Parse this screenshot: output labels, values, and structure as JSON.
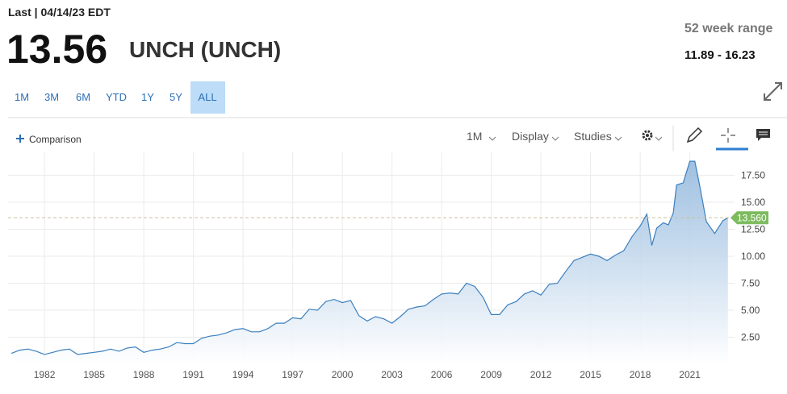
{
  "header": {
    "last_label": "Last | 04/14/23 EDT",
    "price": "13.56",
    "name": "UNCH (UNCH)",
    "range_label": "52 week range",
    "range": "11.89 - 16.23"
  },
  "range_buttons": [
    "1M",
    "3M",
    "6M",
    "YTD",
    "1Y",
    "5Y",
    "ALL"
  ],
  "active_range": 6,
  "toolbar": {
    "comparison": "Comparison",
    "interval": "1M",
    "display": "Display",
    "studies": "Studies"
  },
  "chart_data": {
    "type": "line",
    "color": "#3b7fbf",
    "x": [
      1980,
      1980.5,
      1981,
      1981.5,
      1982,
      1982.5,
      1983,
      1983.5,
      1984,
      1984.5,
      1985,
      1985.5,
      1986,
      1986.5,
      1987,
      1987.5,
      1988,
      1988.5,
      1989,
      1989.5,
      1990,
      1990.5,
      1991,
      1991.5,
      1992,
      1992.5,
      1993,
      1993.5,
      1994,
      1994.5,
      1995,
      1995.5,
      1996,
      1996.5,
      1997,
      1997.5,
      1998,
      1998.5,
      1999,
      1999.5,
      2000,
      2000.5,
      2001,
      2001.5,
      2002,
      2002.5,
      2003,
      2003.5,
      2004,
      2004.5,
      2005,
      2005.5,
      2006,
      2006.5,
      2007,
      2007.5,
      2008,
      2008.5,
      2009,
      2009.5,
      2010,
      2010.5,
      2011,
      2011.5,
      2012,
      2012.5,
      2013,
      2013.5,
      2014,
      2014.5,
      2015,
      2015.5,
      2016,
      2016.5,
      2017,
      2017.5,
      2018,
      2018.4,
      2018.7,
      2019,
      2019.4,
      2019.7,
      2020,
      2020.2,
      2020.6,
      2021,
      2021.3,
      2021.6,
      2022,
      2022.5,
      2023,
      2023.3
    ],
    "values": [
      1.0,
      1.3,
      1.4,
      1.2,
      0.9,
      1.1,
      1.3,
      1.4,
      0.9,
      1.0,
      1.1,
      1.2,
      1.4,
      1.2,
      1.5,
      1.6,
      1.1,
      1.3,
      1.4,
      1.6,
      2.0,
      1.9,
      1.9,
      2.4,
      2.6,
      2.7,
      2.9,
      3.2,
      3.3,
      3.0,
      3.0,
      3.3,
      3.8,
      3.8,
      4.3,
      4.2,
      5.1,
      5.0,
      5.8,
      6.0,
      5.7,
      5.9,
      4.5,
      4.0,
      4.4,
      4.2,
      3.8,
      4.4,
      5.1,
      5.3,
      5.4,
      6.0,
      6.5,
      6.6,
      6.5,
      7.5,
      7.2,
      6.2,
      4.6,
      4.6,
      5.5,
      5.8,
      6.5,
      6.8,
      6.4,
      7.4,
      7.5,
      8.6,
      9.6,
      9.9,
      10.2,
      10.0,
      9.6,
      10.1,
      10.5,
      11.8,
      12.8,
      13.9,
      11.0,
      12.6,
      13.1,
      12.9,
      14.0,
      16.6,
      16.8,
      18.8,
      18.8,
      16.5,
      13.2,
      12.1,
      13.3,
      13.56
    ],
    "xlim": [
      1979.8,
      2023.7
    ],
    "ylim": [
      0,
      19.7
    ],
    "xticks": [
      1982,
      1985,
      1988,
      1991,
      1994,
      1997,
      2000,
      2003,
      2006,
      2009,
      2012,
      2015,
      2018,
      2021
    ],
    "yticks": [
      {
        "value": 2.5,
        "label": "2.50"
      },
      {
        "value": 5,
        "label": "5.00"
      },
      {
        "value": 7.5,
        "label": "7.50"
      },
      {
        "value": 10,
        "label": "10.00"
      },
      {
        "value": 12.5,
        "label": "12.50"
      },
      {
        "value": 15,
        "label": "15.00"
      },
      {
        "value": 17.5,
        "label": "17.50"
      }
    ],
    "grid": true,
    "last": {
      "value": 13.56,
      "label": "13.560"
    }
  }
}
